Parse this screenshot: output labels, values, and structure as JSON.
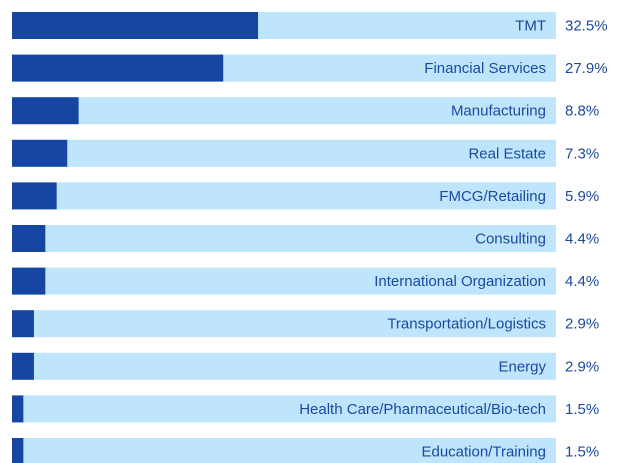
{
  "chart_data": {
    "type": "bar",
    "orientation": "horizontal",
    "categories": [
      "TMT",
      "Financial Services",
      "Manufacturing",
      "Real Estate",
      "FMCG/Retailing",
      "Consulting",
      "International Organization",
      "Transportation/Logistics",
      "Energy",
      "Health Care/Pharmaceutical/Bio-tech",
      "Education/Training"
    ],
    "values": [
      32.5,
      27.9,
      8.8,
      7.3,
      5.9,
      4.4,
      4.4,
      2.9,
      2.9,
      1.5,
      1.5
    ],
    "value_labels": [
      "32.5%",
      "27.9%",
      "8.8%",
      "7.3%",
      "5.9%",
      "4.4%",
      "4.4%",
      "2.9%",
      "2.9%",
      "1.5%",
      "1.5%"
    ],
    "color": "#1746a2",
    "track_color": "#bee5fb"
  }
}
